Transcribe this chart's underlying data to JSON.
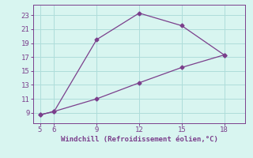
{
  "line1_x": [
    5,
    6,
    9,
    12,
    15,
    18
  ],
  "line1_y": [
    8.7,
    9.2,
    19.5,
    23.3,
    21.5,
    17.3
  ],
  "line2_x": [
    5,
    6,
    9,
    12,
    15,
    18
  ],
  "line2_y": [
    8.7,
    9.2,
    11.0,
    13.3,
    15.5,
    17.3
  ],
  "color": "#7b3f8c",
  "bg_color": "#d8f5f0",
  "grid_color": "#aeddda",
  "xlabel": "Windchill (Refroidissement éolien,°C)",
  "xlim": [
    4.5,
    19.5
  ],
  "ylim": [
    7.5,
    24.5
  ],
  "xticks": [
    5,
    6,
    9,
    12,
    15,
    18
  ],
  "yticks": [
    9,
    11,
    13,
    15,
    17,
    19,
    21,
    23
  ],
  "xlabel_color": "#7b3f8c",
  "tick_color": "#7b3f8c",
  "marker": "D",
  "markersize": 2.5,
  "linewidth": 0.9
}
